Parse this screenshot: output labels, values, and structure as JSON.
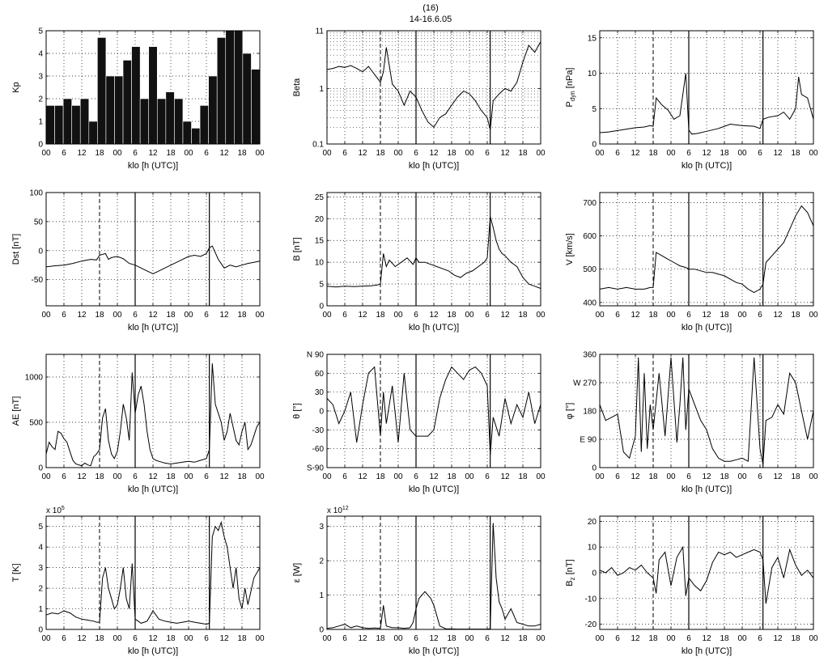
{
  "figure": {
    "title": "(16)",
    "subtitle": "14-16.6.05"
  },
  "common": {
    "xlabel": "klo [h (UTC)]",
    "xticks": [
      "00",
      "6",
      "12",
      "18",
      "00",
      "6",
      "12",
      "18",
      "00",
      "6",
      "12",
      "18",
      "00"
    ],
    "xlim": [
      0,
      72
    ],
    "markers": {
      "dashed": 18,
      "solid": [
        30,
        55
      ]
    }
  },
  "chart_data": [
    {
      "id": "kp",
      "type": "bar",
      "ylabel": "Kp",
      "ylim": [
        0,
        5
      ],
      "yticks": [
        "0",
        "1",
        "2",
        "3",
        "4",
        "5"
      ],
      "ytick_values": [
        0,
        1,
        2,
        3,
        4,
        5
      ],
      "values": [
        1.7,
        1.7,
        2.0,
        1.7,
        2.0,
        1.0,
        4.7,
        3.0,
        3.0,
        3.7,
        4.3,
        2.0,
        4.3,
        2.0,
        2.3,
        2.0,
        1.0,
        0.7,
        1.7,
        3.0,
        4.7,
        5.0,
        5.0,
        4.0,
        3.3
      ],
      "show_markers": false
    },
    {
      "id": "beta",
      "type": "line",
      "ylabel": "Beta",
      "ylim": [
        0.1,
        11
      ],
      "log": true,
      "yticks": [
        "0.1",
        "1",
        "11"
      ],
      "ytick_values": [
        0.1,
        1,
        11
      ],
      "x": [
        0,
        2,
        4,
        6,
        8,
        10,
        12,
        14,
        16,
        18,
        19,
        20,
        22,
        24,
        26,
        28,
        30,
        32,
        34,
        36,
        38,
        40,
        42,
        44,
        46,
        48,
        50,
        52,
        54,
        55,
        56,
        58,
        60,
        62,
        64,
        66,
        68,
        70,
        72
      ],
      "y": [
        2.2,
        2.3,
        2.5,
        2.4,
        2.6,
        2.3,
        2.0,
        2.5,
        1.8,
        1.3,
        2.0,
        5.5,
        1.2,
        0.9,
        0.5,
        0.9,
        0.7,
        0.4,
        0.25,
        0.2,
        0.3,
        0.35,
        0.5,
        0.7,
        0.9,
        0.8,
        0.6,
        0.4,
        0.3,
        0.18,
        0.6,
        0.8,
        1.0,
        0.9,
        1.3,
        3.0,
        6.0,
        4.5,
        7.0
      ],
      "show_markers": true
    },
    {
      "id": "pdyn",
      "type": "line",
      "ylabel": "P dyn [nPa]",
      "ylabel_main": "P",
      "ylabel_sub": "dyn",
      "ylabel_tail": " [nPa]",
      "ylim": [
        0,
        16
      ],
      "yticks": [
        "0",
        "5",
        "10",
        "15"
      ],
      "ytick_values": [
        0,
        5,
        10,
        15
      ],
      "x": [
        0,
        3,
        6,
        9,
        12,
        15,
        17,
        18,
        19,
        21,
        23,
        25,
        27,
        29,
        30,
        31,
        33,
        36,
        40,
        44,
        48,
        52,
        54,
        55,
        57,
        60,
        62,
        64,
        66,
        67,
        68,
        70,
        72
      ],
      "y": [
        1.6,
        1.7,
        1.9,
        2.1,
        2.3,
        2.4,
        2.6,
        2.5,
        6.5,
        5.5,
        4.8,
        3.5,
        4.0,
        10.0,
        2.0,
        1.4,
        1.5,
        1.8,
        2.2,
        2.8,
        2.6,
        2.5,
        2.2,
        3.5,
        3.8,
        4.0,
        4.5,
        3.5,
        5.0,
        9.5,
        7.0,
        6.5,
        3.5
      ],
      "show_markers": true
    },
    {
      "id": "dst",
      "type": "line",
      "ylabel": "Dst [nT]",
      "ylim": [
        -95,
        100
      ],
      "yticks": [
        "-50",
        "0",
        "50",
        "100"
      ],
      "ytick_values": [
        -50,
        0,
        50,
        100
      ],
      "x": [
        0,
        3,
        6,
        9,
        12,
        15,
        17,
        18,
        20,
        21,
        22,
        24,
        26,
        28,
        30,
        32,
        34,
        36,
        38,
        40,
        42,
        44,
        46,
        48,
        50,
        52,
        54,
        55,
        56,
        58,
        60,
        62,
        64,
        66,
        68,
        70,
        72
      ],
      "y": [
        -28,
        -26,
        -25,
        -22,
        -18,
        -15,
        -16,
        -8,
        -5,
        -15,
        -12,
        -10,
        -14,
        -22,
        -25,
        -30,
        -35,
        -40,
        -35,
        -30,
        -25,
        -20,
        -15,
        -10,
        -8,
        -10,
        -5,
        5,
        8,
        -15,
        -30,
        -25,
        -28,
        -25,
        -22,
        -20,
        -18
      ],
      "show_markers": true
    },
    {
      "id": "b",
      "type": "line",
      "ylabel": "B [nT]",
      "ylim": [
        0,
        26
      ],
      "yticks": [
        "0",
        "5",
        "10",
        "15",
        "20",
        "25"
      ],
      "ytick_values": [
        0,
        5,
        10,
        15,
        20,
        25
      ],
      "x": [
        0,
        3,
        6,
        9,
        12,
        15,
        17,
        18,
        19,
        20,
        21,
        23,
        25,
        27,
        29,
        30,
        31,
        33,
        35,
        37,
        39,
        41,
        43,
        45,
        47,
        49,
        51,
        53,
        54,
        55,
        56,
        57,
        58,
        59,
        60,
        62,
        64,
        66,
        68,
        70,
        72
      ],
      "y": [
        4.5,
        4.3,
        4.5,
        4.4,
        4.5,
        4.6,
        4.8,
        5.0,
        12.0,
        9.0,
        10.5,
        9.0,
        10.0,
        11.0,
        9.5,
        11.0,
        10.0,
        10.0,
        9.5,
        9.0,
        8.5,
        8.0,
        7.0,
        6.5,
        7.5,
        8.0,
        9.0,
        10.0,
        11.0,
        20.5,
        18.0,
        15.0,
        13.0,
        12.0,
        11.5,
        10.0,
        9.0,
        6.5,
        5.0,
        4.5,
        4.0
      ],
      "show_markers": true
    },
    {
      "id": "v",
      "type": "line",
      "ylabel": "V [km/s]",
      "ylim": [
        390,
        730
      ],
      "yticks": [
        "400",
        "500",
        "600",
        "700"
      ],
      "ytick_values": [
        400,
        500,
        600,
        700
      ],
      "x": [
        0,
        3,
        6,
        9,
        12,
        15,
        17,
        18,
        19,
        21,
        23,
        25,
        27,
        29,
        30,
        32,
        34,
        36,
        38,
        40,
        42,
        44,
        46,
        48,
        50,
        52,
        54,
        55,
        56,
        58,
        60,
        62,
        64,
        66,
        68,
        70,
        72
      ],
      "y": [
        440,
        445,
        440,
        445,
        440,
        440,
        445,
        445,
        550,
        540,
        530,
        520,
        510,
        505,
        500,
        500,
        495,
        490,
        490,
        485,
        480,
        470,
        460,
        455,
        440,
        430,
        440,
        455,
        520,
        540,
        560,
        580,
        620,
        660,
        690,
        670,
        630
      ],
      "show_markers": true
    },
    {
      "id": "ae",
      "type": "line",
      "ylabel": "AE [nT]",
      "ylim": [
        0,
        1250
      ],
      "yticks": [
        "0",
        "500",
        "1000"
      ],
      "ytick_values": [
        0,
        500,
        1000
      ],
      "x": [
        0,
        1,
        2,
        3,
        4,
        5,
        6,
        7,
        8,
        9,
        10,
        11,
        12,
        13,
        14,
        15,
        16,
        17,
        18,
        19,
        20,
        21,
        22,
        23,
        24,
        25,
        26,
        27,
        28,
        29,
        30,
        31,
        32,
        33,
        34,
        35,
        36,
        37,
        38,
        39,
        40,
        42,
        44,
        46,
        48,
        50,
        52,
        54,
        55,
        56,
        57,
        58,
        59,
        60,
        61,
        62,
        63,
        64,
        65,
        66,
        67,
        68,
        69,
        70,
        71,
        72
      ],
      "y": [
        150,
        280,
        230,
        200,
        400,
        380,
        320,
        280,
        180,
        80,
        40,
        30,
        20,
        50,
        30,
        20,
        120,
        150,
        200,
        550,
        650,
        300,
        150,
        100,
        180,
        400,
        700,
        550,
        300,
        1050,
        600,
        800,
        900,
        700,
        400,
        200,
        100,
        80,
        70,
        60,
        50,
        40,
        50,
        60,
        70,
        60,
        80,
        100,
        200,
        1150,
        700,
        600,
        500,
        300,
        400,
        600,
        450,
        300,
        250,
        400,
        500,
        200,
        250,
        350,
        450,
        500
      ],
      "show_markers": true
    },
    {
      "id": "theta",
      "type": "line",
      "ylabel": "θ [°]",
      "ylim": [
        -90,
        90
      ],
      "yticks": [
        "S-90",
        "-60",
        "-30",
        "0",
        "30",
        "60",
        "N 90"
      ],
      "ytick_values": [
        -90,
        -60,
        -30,
        0,
        30,
        60,
        90
      ],
      "x": [
        0,
        2,
        4,
        6,
        8,
        10,
        12,
        14,
        16,
        18,
        19,
        20,
        22,
        24,
        26,
        28,
        30,
        32,
        34,
        36,
        38,
        40,
        42,
        44,
        46,
        48,
        50,
        52,
        54,
        55,
        56,
        58,
        60,
        62,
        64,
        66,
        68,
        70,
        72
      ],
      "y": [
        20,
        10,
        -20,
        0,
        30,
        -50,
        10,
        60,
        70,
        -40,
        30,
        -20,
        40,
        -50,
        60,
        -30,
        -40,
        -40,
        -40,
        -30,
        20,
        50,
        70,
        60,
        50,
        65,
        70,
        60,
        40,
        -70,
        -10,
        -40,
        20,
        -20,
        10,
        -10,
        30,
        -20,
        10
      ],
      "show_markers": true
    },
    {
      "id": "phi",
      "type": "line",
      "ylabel": "φ [°]",
      "ylim": [
        0,
        360
      ],
      "yticks": [
        "0",
        "E 90",
        "180",
        "W 270",
        "360"
      ],
      "ytick_values": [
        0,
        90,
        180,
        270,
        360
      ],
      "x": [
        0,
        2,
        4,
        6,
        8,
        10,
        12,
        13,
        14,
        15,
        16,
        17,
        18,
        20,
        22,
        24,
        26,
        27,
        28,
        29,
        30,
        32,
        34,
        36,
        38,
        40,
        42,
        44,
        46,
        48,
        50,
        52,
        54,
        55,
        56,
        58,
        60,
        62,
        64,
        66,
        68,
        70,
        72
      ],
      "y": [
        200,
        150,
        160,
        170,
        50,
        30,
        100,
        350,
        50,
        300,
        60,
        200,
        120,
        300,
        100,
        350,
        80,
        200,
        350,
        120,
        250,
        200,
        150,
        120,
        60,
        30,
        20,
        20,
        25,
        30,
        20,
        350,
        60,
        10,
        150,
        160,
        200,
        170,
        300,
        270,
        180,
        90,
        180
      ],
      "show_markers": true
    },
    {
      "id": "temp",
      "type": "line",
      "ylabel": "T [K]",
      "ylim": [
        0,
        5.5
      ],
      "yticks": [
        "0",
        "1",
        "2",
        "3",
        "4",
        "5"
      ],
      "ytick_values": [
        0,
        1,
        2,
        3,
        4,
        5
      ],
      "scale_label": "x 10",
      "scale_exp": "5",
      "x": [
        0,
        2,
        4,
        6,
        8,
        10,
        12,
        14,
        16,
        17,
        18,
        19,
        20,
        21,
        22,
        23,
        24,
        25,
        26,
        27,
        28,
        29,
        30,
        31,
        32,
        34,
        36,
        38,
        40,
        42,
        44,
        46,
        48,
        50,
        52,
        54,
        55,
        56,
        57,
        58,
        59,
        60,
        61,
        62,
        63,
        64,
        65,
        66,
        67,
        68,
        70,
        72
      ],
      "y": [
        0.7,
        0.8,
        0.75,
        0.9,
        0.8,
        0.6,
        0.5,
        0.45,
        0.4,
        0.35,
        0.35,
        2.5,
        3.0,
        2.0,
        1.5,
        1.0,
        1.2,
        2.0,
        3.0,
        1.5,
        1.0,
        3.2,
        0.5,
        0.4,
        0.3,
        0.4,
        0.9,
        0.5,
        0.4,
        0.35,
        0.3,
        0.35,
        0.4,
        0.35,
        0.3,
        0.25,
        0.3,
        4.5,
        5.0,
        4.8,
        5.2,
        4.5,
        4.0,
        3.0,
        2.0,
        3.0,
        1.5,
        1.0,
        2.0,
        1.2,
        2.5,
        3.0
      ],
      "show_markers": true
    },
    {
      "id": "eps",
      "type": "line",
      "ylabel": "ε [W]",
      "ylim": [
        0,
        3.3
      ],
      "yticks": [
        "0",
        "1",
        "2",
        "3"
      ],
      "ytick_values": [
        0,
        1,
        2,
        3
      ],
      "scale_label": "x 10",
      "scale_exp": "12",
      "x": [
        0,
        2,
        4,
        6,
        8,
        10,
        12,
        14,
        16,
        18,
        19,
        20,
        22,
        24,
        26,
        28,
        29,
        30,
        31,
        32,
        33,
        34,
        35,
        36,
        37,
        38,
        40,
        44,
        48,
        52,
        54,
        55,
        56,
        57,
        58,
        59,
        60,
        62,
        64,
        66,
        68,
        70,
        72
      ],
      "y": [
        0.03,
        0.05,
        0.1,
        0.15,
        0.05,
        0.1,
        0.05,
        0.03,
        0.04,
        0.03,
        0.7,
        0.1,
        0.05,
        0.05,
        0.03,
        0.05,
        0.2,
        0.6,
        0.9,
        1.0,
        1.1,
        1.0,
        0.9,
        0.7,
        0.4,
        0.1,
        0.02,
        0.01,
        0.01,
        0.01,
        0.01,
        0.02,
        3.1,
        1.5,
        0.8,
        0.6,
        0.3,
        0.6,
        0.2,
        0.15,
        0.1,
        0.1,
        0.15
      ],
      "show_markers": true
    },
    {
      "id": "bz",
      "type": "line",
      "ylabel": "B z [nT]",
      "ylabel_main": "B",
      "ylabel_sub": "z",
      "ylabel_tail": " [nT]",
      "ylim": [
        -22,
        22
      ],
      "yticks": [
        "-20",
        "-10",
        "0",
        "10",
        "20"
      ],
      "ytick_values": [
        -20,
        -10,
        0,
        10,
        20
      ],
      "x": [
        0,
        2,
        4,
        6,
        8,
        10,
        12,
        14,
        16,
        18,
        19,
        20,
        22,
        24,
        26,
        28,
        29,
        30,
        32,
        34,
        36,
        38,
        40,
        42,
        44,
        46,
        48,
        50,
        52,
        54,
        55,
        56,
        58,
        60,
        62,
        64,
        66,
        68,
        70,
        72
      ],
      "y": [
        1,
        0,
        2,
        -1,
        0,
        2,
        1,
        3,
        0,
        -2,
        -8,
        5,
        8,
        -5,
        6,
        10,
        -9,
        -2,
        -5,
        -7,
        -3,
        4,
        8,
        7,
        8,
        6,
        7,
        8,
        9,
        8,
        5,
        -12,
        2,
        6,
        -2,
        9,
        3,
        -1,
        1,
        -2
      ],
      "show_markers": true
    }
  ]
}
